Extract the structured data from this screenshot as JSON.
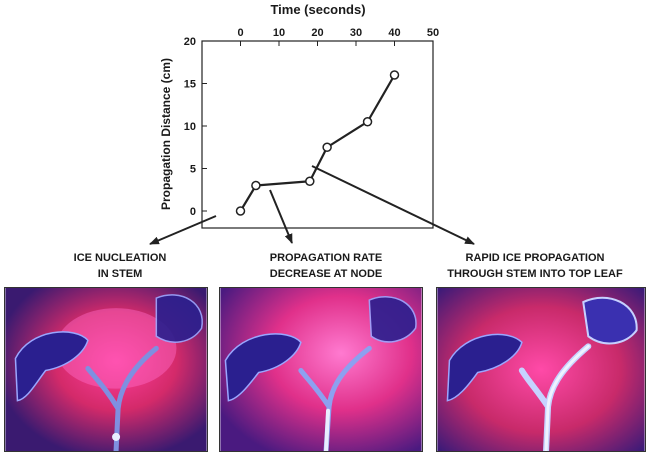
{
  "chart_data": {
    "type": "line",
    "xlabel": "Time (seconds)",
    "ylabel": "Propagation Distance (cm)",
    "xlim": [
      -10,
      50
    ],
    "ylim": [
      -2,
      20
    ],
    "xticks": [
      0,
      10,
      20,
      30,
      40,
      50
    ],
    "yticks": [
      0,
      5,
      10,
      15,
      20
    ],
    "x_axis_position": "top",
    "grid": false,
    "markers": "open-circle",
    "line_color": "#222222",
    "points": [
      {
        "x": 0,
        "y": 0
      },
      {
        "x": 4,
        "y": 3
      },
      {
        "x": 18,
        "y": 3.5
      },
      {
        "x": 22.5,
        "y": 7.5
      },
      {
        "x": 33,
        "y": 10.5
      },
      {
        "x": 40,
        "y": 16
      }
    ]
  },
  "panels": [
    {
      "title_lines": [
        "ICE NUCLEATION",
        "IN STEM"
      ],
      "stage": "nucleation"
    },
    {
      "title_lines": [
        "PROPAGATION RATE",
        "DECREASE AT NODE"
      ],
      "stage": "node"
    },
    {
      "title_lines": [
        "RAPID ICE PROPAGATION",
        "THROUGH STEM INTO TOP LEAF"
      ],
      "stage": "rapid"
    }
  ],
  "colors": {
    "thermal_background": "#c8245a",
    "thermal_hot": "#ff3fae",
    "thermal_cold": "#2a1f8f",
    "ice": "#b8c8ff",
    "arrow": "#222222"
  }
}
